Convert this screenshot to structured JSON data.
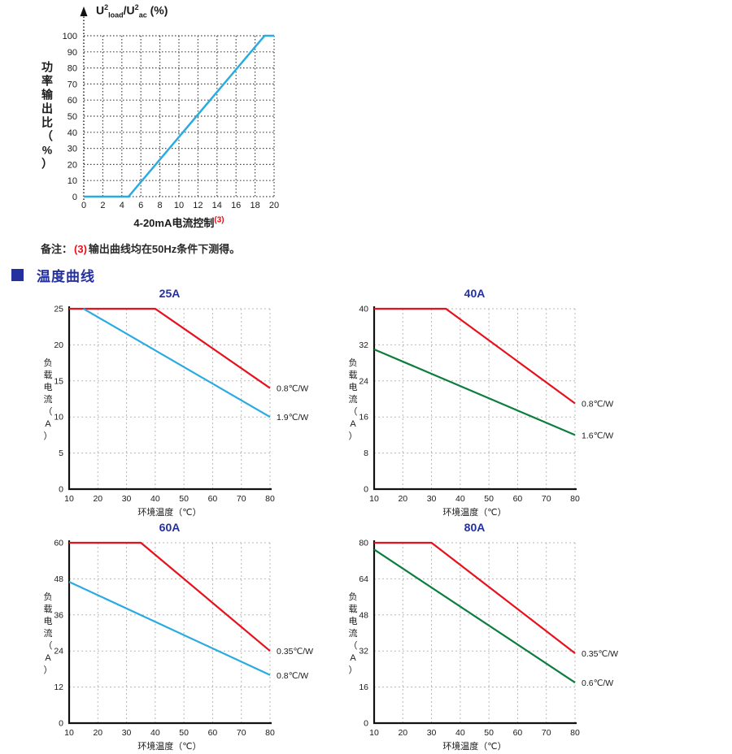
{
  "colors": {
    "accent_blue": "#2430A0",
    "line_blue": "#29ABE2",
    "line_red": "#E8101C",
    "line_green": "#0B7E3E",
    "note_red": "#E8101C",
    "grid_dark": "#444444",
    "grid_light": "#B8B8B8",
    "axis_black": "#111111",
    "text_dark": "#1A1A1A"
  },
  "note": {
    "prefix": "备注：",
    "ref": "(3)",
    "text": "输出曲线均在50Hz条件下测得。"
  },
  "section": {
    "title": "温度曲线"
  },
  "chart_data": [
    {
      "type": "line",
      "name": "power-output-ratio-vs-control-current",
      "y_axis_title": {
        "base1": "U",
        "sup1": "2",
        "sub1": "load",
        "slash": "/",
        "base2": "U",
        "sup2": "2",
        "sub2": "ac",
        "unit": " (%)"
      },
      "y_label_vertical": "功率输出比（%）",
      "x_label": "4-20mA电流控制",
      "x_label_note_ref": "(3)",
      "xlim": [
        0,
        20
      ],
      "ylim": [
        0,
        100
      ],
      "x_ticks": [
        0,
        2,
        4,
        6,
        8,
        10,
        12,
        14,
        16,
        18,
        20
      ],
      "y_ticks": [
        0,
        10,
        20,
        30,
        40,
        50,
        60,
        70,
        80,
        90,
        100
      ],
      "grid": true,
      "legend_position": "none",
      "series": [
        {
          "label": "",
          "color": "#29ABE2",
          "points": [
            [
              0,
              0
            ],
            [
              4.7,
              0
            ],
            [
              19,
              100
            ],
            [
              20,
              100
            ]
          ]
        }
      ]
    },
    {
      "type": "line",
      "title": "25A",
      "x_label": "环境温度（℃）",
      "y_label_vertical": "负载电流（A）",
      "xlim": [
        10,
        80
      ],
      "ylim": [
        0,
        25
      ],
      "x_ticks": [
        10,
        20,
        30,
        40,
        50,
        60,
        70,
        80
      ],
      "y_ticks": [
        0,
        5,
        10,
        15,
        20,
        25
      ],
      "grid": true,
      "legend_position": "line-end-right",
      "series": [
        {
          "label": "0.8℃/W",
          "color": "#E8101C",
          "points": [
            [
              10,
              25
            ],
            [
              40,
              25
            ],
            [
              80,
              14
            ]
          ]
        },
        {
          "label": "1.9℃/W",
          "color": "#29ABE2",
          "points": [
            [
              15,
              25
            ],
            [
              80,
              10
            ]
          ]
        }
      ]
    },
    {
      "type": "line",
      "title": "40A",
      "x_label": "环境温度（℃）",
      "y_label_vertical": "负载电流（A）",
      "xlim": [
        10,
        80
      ],
      "ylim": [
        0,
        40
      ],
      "x_ticks": [
        10,
        20,
        30,
        40,
        50,
        60,
        70,
        80
      ],
      "y_ticks": [
        0,
        8,
        16,
        24,
        32,
        40
      ],
      "grid": true,
      "legend_position": "line-end-right",
      "series": [
        {
          "label": "0.8℃/W",
          "color": "#E8101C",
          "points": [
            [
              10,
              40
            ],
            [
              35,
              40
            ],
            [
              80,
              19
            ]
          ]
        },
        {
          "label": "1.6℃/W",
          "color": "#0B7E3E",
          "points": [
            [
              10,
              31
            ],
            [
              80,
              12
            ]
          ]
        }
      ]
    },
    {
      "type": "line",
      "title": "60A",
      "x_label": "环境温度（℃）",
      "y_label_vertical": "负载电流（A）",
      "xlim": [
        10,
        80
      ],
      "ylim": [
        0,
        60
      ],
      "x_ticks": [
        10,
        20,
        30,
        40,
        50,
        60,
        70,
        80
      ],
      "y_ticks": [
        0,
        12,
        24,
        36,
        48,
        60
      ],
      "grid": true,
      "legend_position": "line-end-right",
      "series": [
        {
          "label": "0.35℃/W",
          "color": "#E8101C",
          "points": [
            [
              10,
              60
            ],
            [
              35,
              60
            ],
            [
              80,
              24
            ]
          ]
        },
        {
          "label": "0.8℃/W",
          "color": "#29ABE2",
          "points": [
            [
              10,
              47
            ],
            [
              80,
              16
            ]
          ]
        }
      ]
    },
    {
      "type": "line",
      "title": "80A",
      "x_label": "环境温度（℃）",
      "y_label_vertical": "负载电流（A）",
      "xlim": [
        10,
        80
      ],
      "ylim": [
        0,
        80
      ],
      "x_ticks": [
        10,
        20,
        30,
        40,
        50,
        60,
        70,
        80
      ],
      "y_ticks": [
        0,
        16,
        32,
        48,
        64,
        80
      ],
      "grid": true,
      "legend_position": "line-end-right",
      "series": [
        {
          "label": "0.35℃/W",
          "color": "#E8101C",
          "points": [
            [
              10,
              80
            ],
            [
              30,
              80
            ],
            [
              80,
              31
            ]
          ]
        },
        {
          "label": "0.6℃/W",
          "color": "#0B7E3E",
          "points": [
            [
              10,
              77
            ],
            [
              80,
              18
            ]
          ]
        }
      ]
    }
  ]
}
